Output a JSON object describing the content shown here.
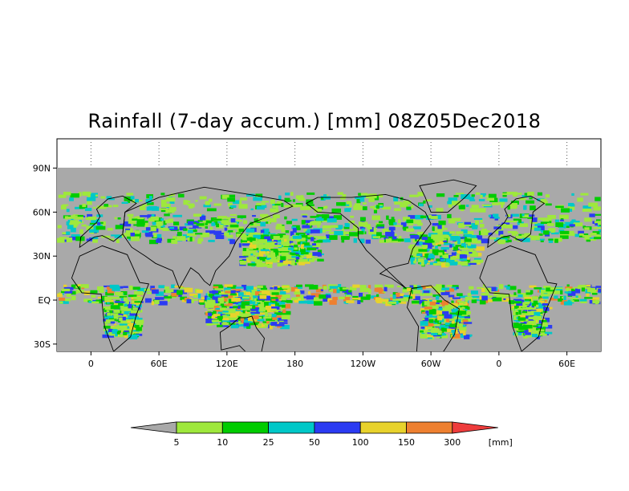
{
  "title": "Rainfall (7-day accum.) [mm] 08Z05Dec2018",
  "map": {
    "projection": "cylindrical",
    "lon_range": [
      -30,
      90
    ],
    "lat_range": [
      -35,
      110
    ],
    "data_lat_range": [
      -35,
      90
    ],
    "ocean_land_no_rain_color": "#a9a9a9",
    "xticks": [
      "0",
      "60E",
      "120E",
      "180",
      "120W",
      "60W",
      "0",
      "60E"
    ],
    "xtick_lons": [
      0,
      60,
      120,
      180,
      240,
      300,
      360,
      420
    ],
    "yticks": [
      "90N",
      "60N",
      "30N",
      "EQ",
      "30S"
    ],
    "ytick_lats": [
      90,
      60,
      30,
      0,
      -30
    ]
  },
  "colorbar": {
    "unit_label": "[mm]",
    "thresholds": [
      "5",
      "10",
      "25",
      "50",
      "100",
      "150",
      "300"
    ],
    "colors": [
      "#a9a9a9",
      "#9ee83c",
      "#00cc00",
      "#00c8c8",
      "#2b3bf2",
      "#e8d22c",
      "#ee8030",
      "#ee3c3c"
    ]
  }
}
